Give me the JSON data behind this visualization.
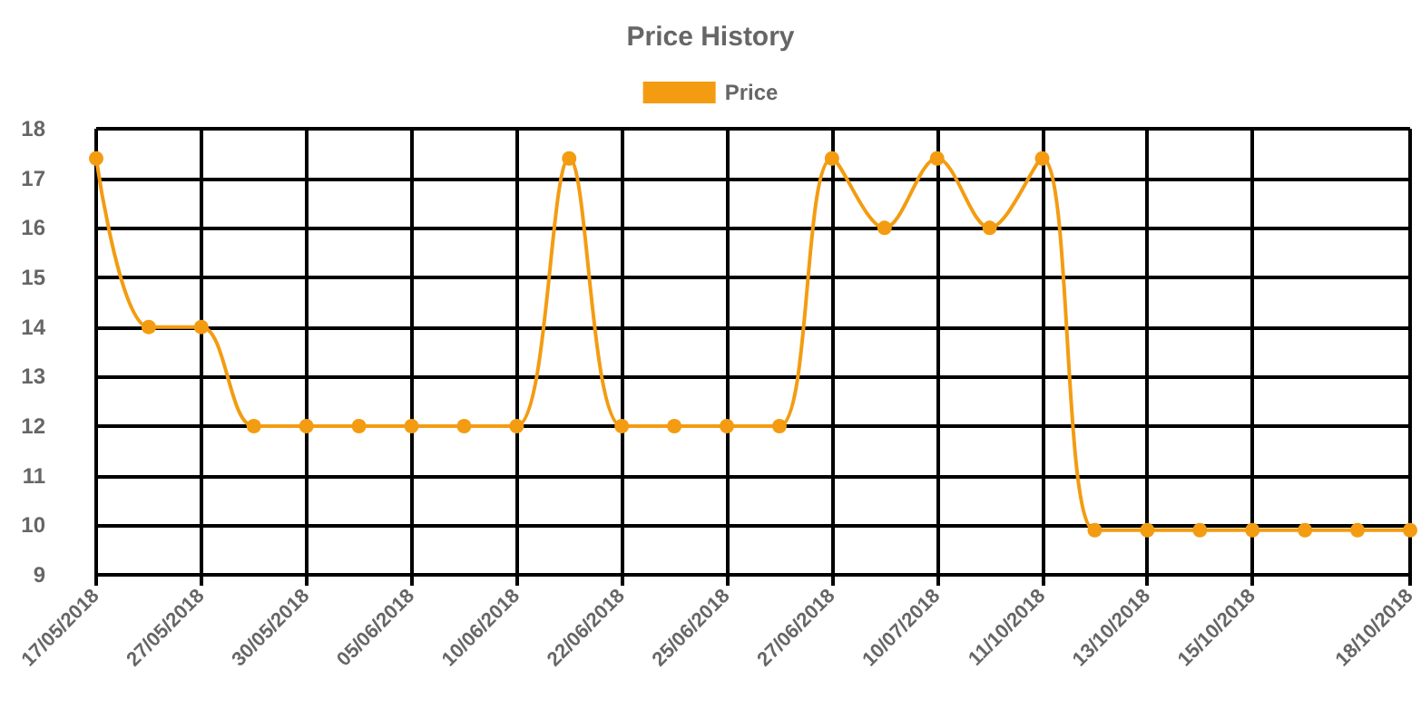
{
  "chart_data": {
    "type": "line",
    "title": "Price History",
    "categories": [
      "17/05/2018",
      null,
      "27/05/2018",
      null,
      "30/05/2018",
      null,
      "05/06/2018",
      null,
      "10/06/2018",
      null,
      "22/06/2018",
      null,
      "25/06/2018",
      null,
      "27/06/2018",
      null,
      "10/07/2018",
      null,
      "11/10/2018",
      null,
      "13/10/2018",
      null,
      "15/10/2018",
      null,
      null,
      "18/10/2018"
    ],
    "series": [
      {
        "name": "Price",
        "color": "#f39c12",
        "values": [
          17.4,
          14,
          14,
          12,
          12,
          12,
          12,
          12,
          12,
          17.4,
          12,
          12,
          12,
          12,
          17.4,
          16,
          17.4,
          16,
          17.4,
          9.9,
          9.9,
          9.9,
          9.9,
          9.9,
          9.9,
          9.9
        ]
      }
    ],
    "ylim": [
      9,
      18
    ],
    "yticks": [
      9,
      10,
      11,
      12,
      13,
      14,
      15,
      16,
      17,
      18
    ],
    "grid": true,
    "legend": "top",
    "marker": "circle",
    "line_style": "solid"
  }
}
